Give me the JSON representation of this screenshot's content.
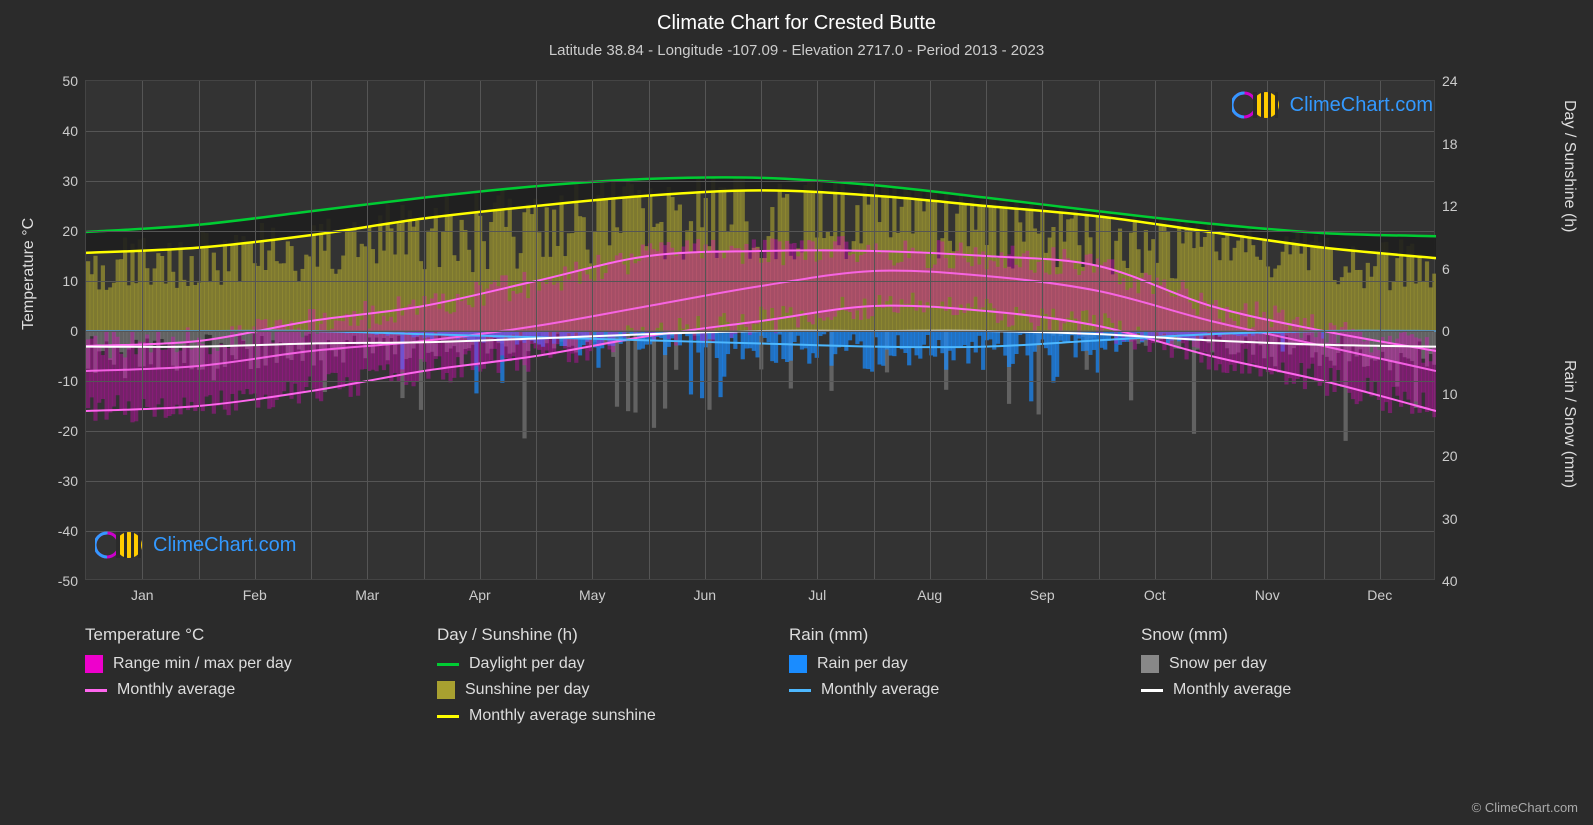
{
  "title": "Climate Chart for Crested Butte",
  "subtitle": "Latitude 38.84 - Longitude -107.09 - Elevation 2717.0 - Period 2013 - 2023",
  "axis_left_label": "Temperature °C",
  "axis_right_top_label": "Day / Sunshine (h)",
  "axis_right_bottom_label": "Rain / Snow (mm)",
  "watermark_text": "ClimeChart.com",
  "copyright": "© ClimeChart.com",
  "colors": {
    "background": "#2b2b2b",
    "plot_bg": "#333333",
    "grid": "#555555",
    "text": "#dddddd",
    "title": "#ffffff",
    "daylight_line": "#00cc33",
    "sunshine_line": "#ffff00",
    "sunshine_fill": "#a8a030",
    "temp_range": "#ee00cc",
    "temp_range_fill": "#dd5599",
    "temp_avg": "#ff66ee",
    "rain_bar": "#1a8cff",
    "rain_avg": "#4db8ff",
    "snow_bar": "#888888",
    "snow_avg": "#ffffff",
    "watermark": "#3399ff"
  },
  "temp_axis": {
    "min": -50,
    "max": 50,
    "ticks": [
      -50,
      -40,
      -30,
      -20,
      -10,
      0,
      10,
      20,
      30,
      40,
      50
    ]
  },
  "sun_axis": {
    "min": 0,
    "max": 24,
    "ticks": [
      0,
      6,
      12,
      18,
      24
    ]
  },
  "precip_axis": {
    "min": 0,
    "max": 40,
    "ticks": [
      0,
      10,
      20,
      30,
      40
    ]
  },
  "months": [
    "Jan",
    "Feb",
    "Mar",
    "Apr",
    "May",
    "Jun",
    "Jul",
    "Aug",
    "Sep",
    "Oct",
    "Nov",
    "Dec"
  ],
  "daylight_hours": [
    9.5,
    10.2,
    11.5,
    12.8,
    13.9,
    14.6,
    14.7,
    14.0,
    12.8,
    11.5,
    10.3,
    9.4,
    9.1
  ],
  "sunshine_hours": [
    7.5,
    8.0,
    9.2,
    10.8,
    12.0,
    13.0,
    13.5,
    13.0,
    12.0,
    11.0,
    9.5,
    8.0,
    7.0
  ],
  "temp_max": [
    -3,
    -2,
    2,
    5,
    10,
    15,
    16,
    16,
    15,
    13,
    5,
    0,
    -4
  ],
  "temp_avg": [
    -8,
    -7,
    -4,
    -2,
    1,
    5,
    9,
    12,
    11,
    8,
    2,
    -3,
    -8
  ],
  "temp_min": [
    -16,
    -15,
    -12,
    -8,
    -5,
    -1,
    2,
    5,
    4,
    1,
    -5,
    -10,
    -16
  ],
  "rain_avg_mm": [
    0,
    0,
    0,
    0.5,
    1,
    1.5,
    2,
    2.5,
    2.5,
    1.5,
    0.5,
    0,
    0
  ],
  "snow_avg_mm": [
    2.5,
    2.5,
    2.0,
    1.8,
    1.2,
    0.5,
    0,
    0,
    0,
    0.5,
    1.5,
    2.2,
    2.5
  ],
  "legend": {
    "temperature_header": "Temperature °C",
    "temperature_items": [
      {
        "type": "swatch",
        "color": "#ee00cc",
        "label": "Range min / max per day"
      },
      {
        "type": "line",
        "color": "#ff66ee",
        "label": "Monthly average"
      }
    ],
    "sunshine_header": "Day / Sunshine (h)",
    "sunshine_items": [
      {
        "type": "line",
        "color": "#00cc33",
        "label": "Daylight per day"
      },
      {
        "type": "swatch",
        "color": "#a8a030",
        "label": "Sunshine per day"
      },
      {
        "type": "line",
        "color": "#ffff00",
        "label": "Monthly average sunshine"
      }
    ],
    "rain_header": "Rain (mm)",
    "rain_items": [
      {
        "type": "swatch",
        "color": "#1a8cff",
        "label": "Rain per day"
      },
      {
        "type": "line",
        "color": "#4db8ff",
        "label": "Monthly average"
      }
    ],
    "snow_header": "Snow (mm)",
    "snow_items": [
      {
        "type": "swatch",
        "color": "#888888",
        "label": "Snow per day"
      },
      {
        "type": "line",
        "color": "#ffffff",
        "label": "Monthly average"
      }
    ]
  }
}
